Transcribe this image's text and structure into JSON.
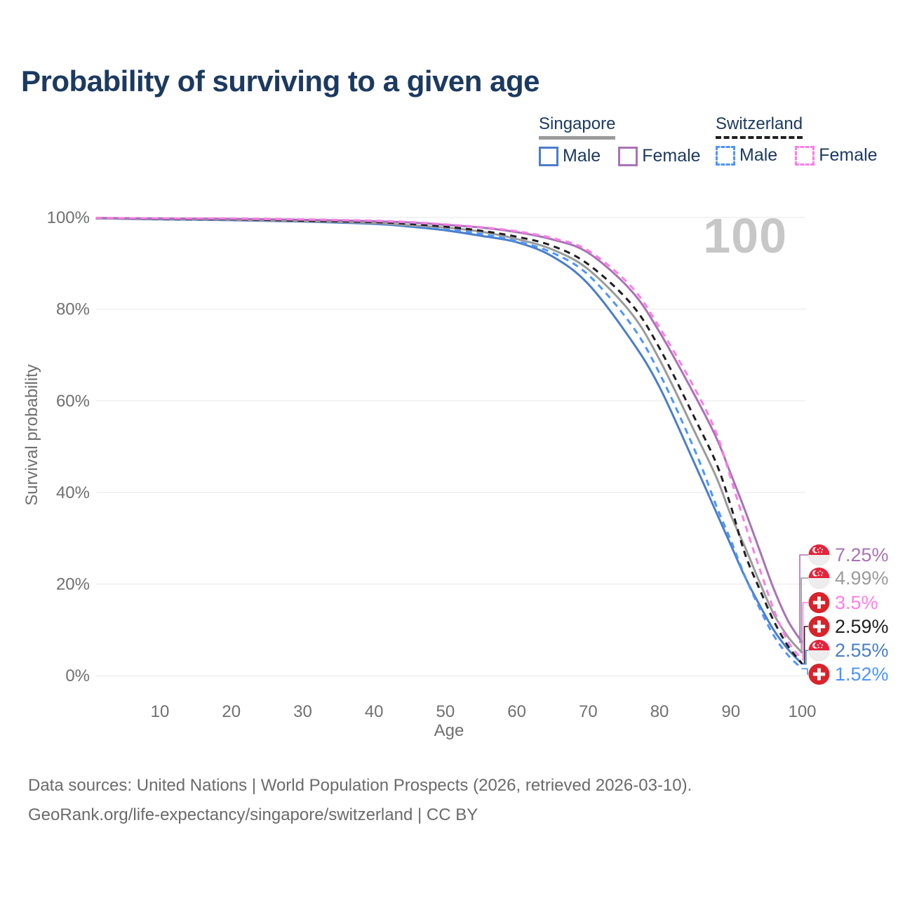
{
  "title": "Probability of surviving to a given age",
  "watermark": "100",
  "legend": {
    "groups": [
      {
        "label": "Singapore",
        "underline": {
          "color": "#9b9b9b",
          "dashed": false
        },
        "items": [
          {
            "label": "Male",
            "swatch": {
              "color": "#4a7ec9",
              "dashed": false
            }
          },
          {
            "label": "Female",
            "swatch": {
              "color": "#a873b5",
              "dashed": false
            }
          }
        ]
      },
      {
        "label": "Switzerland",
        "underline": {
          "color": "#1f1f1f",
          "dashed": true
        },
        "items": [
          {
            "label": "Male",
            "swatch": {
              "color": "#4d94ff",
              "dashed": true
            }
          },
          {
            "label": "Female",
            "swatch": {
              "color": "#ff7ce8",
              "dashed": true
            }
          }
        ]
      }
    ]
  },
  "footer": {
    "line1": "Data sources: United Nations | World Population Prospects (2026, retrieved 2026-03-10).",
    "line2": "GeoRank.org/life-expectancy/singapore/switzerland | CC BY"
  },
  "chart_data": {
    "type": "line",
    "title": "Probability of surviving to a given age",
    "xlabel": "Age",
    "ylabel": "Survival probability",
    "xlim": [
      1,
      100
    ],
    "ylim": [
      0,
      100
    ],
    "x_ticks": [
      10,
      20,
      30,
      40,
      50,
      60,
      70,
      80,
      90,
      100
    ],
    "y_ticks": [
      0,
      20,
      40,
      60,
      80,
      100
    ],
    "y_tick_suffix": "%",
    "grid": "horizontal-only",
    "x": [
      1,
      10,
      20,
      30,
      40,
      45,
      50,
      55,
      60,
      65,
      70,
      76,
      80,
      85,
      88,
      90,
      92,
      94,
      96,
      98,
      100
    ],
    "series": [
      {
        "name": "Singapore Male",
        "country": "sg",
        "flag": "singapore-flag-icon",
        "color": "#4a7ec9",
        "dashed": false,
        "values": [
          99.8,
          99.6,
          99.4,
          99.1,
          98.6,
          98.0,
          97.2,
          96.0,
          94.6,
          91.5,
          85.5,
          73.3,
          63.0,
          46.0,
          35.5,
          28.5,
          21.5,
          15.5,
          10.0,
          5.8,
          2.55
        ],
        "end_label": "2.55%"
      },
      {
        "name": "Switzerland Male",
        "country": "ch",
        "flag": "switzerland-flag-icon",
        "color": "#4d94ff",
        "dashed": true,
        "values": [
          99.8,
          99.7,
          99.5,
          99.2,
          98.8,
          98.2,
          97.5,
          96.4,
          94.8,
          92.3,
          87.5,
          76.7,
          66.0,
          49.0,
          36.9,
          29.5,
          21.6,
          14.8,
          8.8,
          4.5,
          1.52
        ],
        "end_label": "1.52%"
      },
      {
        "name": "Singapore Both sexes",
        "country": "sg",
        "flag": "singapore-flag-icon",
        "color": "#9b9b9b",
        "dashed": false,
        "values": [
          99.8,
          99.7,
          99.5,
          99.2,
          98.8,
          98.3,
          97.8,
          96.9,
          95.3,
          93.0,
          88.7,
          79.2,
          69.0,
          53.0,
          43.2,
          35.0,
          28.0,
          20.5,
          13.5,
          8.5,
          4.99
        ],
        "end_label": "4.99%"
      },
      {
        "name": "Switzerland Both sexes",
        "country": "ch",
        "flag": "switzerland-flag-icon",
        "color": "#1f1f1f",
        "dashed": true,
        "values": [
          99.9,
          99.7,
          99.6,
          99.3,
          99.0,
          98.6,
          98.0,
          97.1,
          95.8,
          93.8,
          89.8,
          81.2,
          71.5,
          56.0,
          46.2,
          37.0,
          26.5,
          19.0,
          12.0,
          6.5,
          2.59
        ],
        "end_label": "2.59%"
      },
      {
        "name": "Singapore Female",
        "country": "sg",
        "flag": "singapore-flag-icon",
        "color": "#a873b5",
        "dashed": false,
        "values": [
          99.9,
          99.8,
          99.7,
          99.5,
          99.2,
          98.9,
          98.4,
          97.8,
          96.8,
          95.2,
          92.3,
          84.1,
          75.0,
          61.0,
          51.8,
          44.0,
          36.0,
          27.5,
          19.0,
          12.0,
          7.25
        ],
        "end_label": "7.25%"
      },
      {
        "name": "Switzerland Female",
        "country": "ch",
        "flag": "switzerland-flag-icon",
        "color": "#ff7ce8",
        "dashed": true,
        "values": [
          99.9,
          99.8,
          99.8,
          99.6,
          99.3,
          99.0,
          98.5,
          97.9,
          97.0,
          95.5,
          92.8,
          85.0,
          76.0,
          62.5,
          52.8,
          43.0,
          33.0,
          23.5,
          14.5,
          7.5,
          3.5
        ],
        "end_label": "3.5%"
      }
    ],
    "legend_position": "top-right",
    "colors": {
      "grid": "#e7e7e7",
      "axis_text": "#707070",
      "title_text": "#1c3a60",
      "watermark": "#c7c7c7",
      "sg_flag_red": "#e6233a",
      "ch_flag_red": "#d8232a"
    }
  }
}
